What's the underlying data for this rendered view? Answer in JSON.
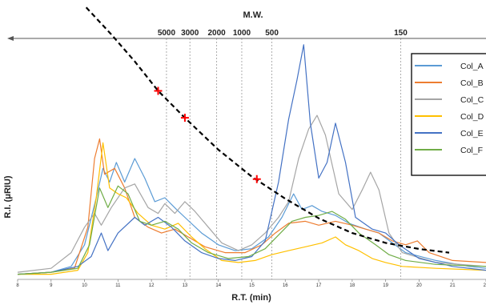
{
  "chart_data": {
    "type": "line",
    "title": "M.W.",
    "xlabel": "R.T. (min)",
    "ylabel": "R.I. (μRIU)",
    "xlim": [
      8,
      22
    ],
    "x_ticks": [
      8,
      9,
      10,
      11,
      12,
      13,
      14,
      15,
      16,
      17,
      18,
      19,
      20,
      21,
      22
    ],
    "y_ticks_shown": false,
    "grid": false,
    "legend_position": "top-right",
    "mw_markers": [
      {
        "label": "5000",
        "rt": 12.45
      },
      {
        "label": "3000",
        "rt": 13.15
      },
      {
        "label": "2000",
        "rt": 13.95
      },
      {
        "label": "1000",
        "rt": 14.7
      },
      {
        "label": "500",
        "rt": 15.6
      },
      {
        "label": "150",
        "rt": 19.45
      }
    ],
    "calibration_curve": {
      "style": "dashed",
      "color": "#000000",
      "points": [
        [
          10.05,
          100
        ],
        [
          10.8,
          89
        ],
        [
          11.5,
          78
        ],
        [
          12.2,
          66
        ],
        [
          13.0,
          55
        ],
        [
          14.0,
          42
        ],
        [
          15.0,
          31
        ],
        [
          16.0,
          22
        ],
        [
          17.0,
          14
        ],
        [
          18.0,
          8
        ],
        [
          19.0,
          4
        ],
        [
          20.0,
          1.5
        ],
        [
          20.9,
          0
        ]
      ],
      "standards": [
        [
          12.2,
          66
        ],
        [
          13.0,
          55
        ],
        [
          15.15,
          30
        ]
      ],
      "standard_marker_color": "#ff0000"
    },
    "series": [
      {
        "name": "Col_A",
        "color": "#5b9bd5",
        "points": [
          [
            8,
            1
          ],
          [
            9,
            2
          ],
          [
            9.6,
            5
          ],
          [
            10.0,
            16
          ],
          [
            10.35,
            40
          ],
          [
            10.55,
            55
          ],
          [
            10.75,
            48
          ],
          [
            10.95,
            58
          ],
          [
            11.2,
            48
          ],
          [
            11.5,
            60
          ],
          [
            11.8,
            50
          ],
          [
            12.1,
            38
          ],
          [
            12.4,
            40
          ],
          [
            12.75,
            34
          ],
          [
            13.0,
            30
          ],
          [
            13.5,
            22
          ],
          [
            14.0,
            16
          ],
          [
            14.5,
            13
          ],
          [
            15.0,
            14
          ],
          [
            15.5,
            20
          ],
          [
            15.9,
            30
          ],
          [
            16.25,
            42
          ],
          [
            16.5,
            34
          ],
          [
            16.8,
            36
          ],
          [
            17.1,
            33
          ],
          [
            17.5,
            31
          ],
          [
            17.9,
            27
          ],
          [
            18.4,
            24
          ],
          [
            18.8,
            22
          ],
          [
            19.2,
            17
          ],
          [
            19.6,
            12
          ],
          [
            20.5,
            8
          ],
          [
            21.5,
            5
          ],
          [
            22,
            4
          ]
        ]
      },
      {
        "name": "Col_B",
        "color": "#ed7d31",
        "points": [
          [
            8,
            1
          ],
          [
            9,
            2
          ],
          [
            9.7,
            4
          ],
          [
            10.1,
            25
          ],
          [
            10.3,
            60
          ],
          [
            10.45,
            70
          ],
          [
            10.6,
            52
          ],
          [
            10.9,
            55
          ],
          [
            11.2,
            45
          ],
          [
            11.5,
            30
          ],
          [
            11.9,
            25
          ],
          [
            12.3,
            22
          ],
          [
            12.7,
            24
          ],
          [
            13.1,
            20
          ],
          [
            13.6,
            15
          ],
          [
            14.2,
            12
          ],
          [
            14.8,
            12
          ],
          [
            15.3,
            16
          ],
          [
            15.7,
            22
          ],
          [
            16.1,
            27
          ],
          [
            16.6,
            28
          ],
          [
            17.0,
            26
          ],
          [
            17.5,
            28
          ],
          [
            18.0,
            26
          ],
          [
            18.4,
            24
          ],
          [
            18.8,
            22
          ],
          [
            19.2,
            18
          ],
          [
            19.6,
            16
          ],
          [
            19.95,
            18
          ],
          [
            20.3,
            12
          ],
          [
            21.0,
            8
          ],
          [
            22,
            7
          ]
        ]
      },
      {
        "name": "Col_C",
        "color": "#a5a5a5",
        "points": [
          [
            8,
            2
          ],
          [
            9,
            4
          ],
          [
            9.6,
            12
          ],
          [
            10.0,
            25
          ],
          [
            10.3,
            32
          ],
          [
            10.5,
            26
          ],
          [
            10.8,
            35
          ],
          [
            11.2,
            45
          ],
          [
            11.5,
            47
          ],
          [
            11.9,
            35
          ],
          [
            12.2,
            32
          ],
          [
            12.4,
            37
          ],
          [
            12.7,
            32
          ],
          [
            13.0,
            38
          ],
          [
            13.3,
            33
          ],
          [
            13.7,
            25
          ],
          [
            14.1,
            17
          ],
          [
            14.6,
            13
          ],
          [
            15.0,
            16
          ],
          [
            15.4,
            22
          ],
          [
            15.8,
            30
          ],
          [
            16.1,
            38
          ],
          [
            16.4,
            60
          ],
          [
            16.7,
            75
          ],
          [
            16.95,
            82
          ],
          [
            17.2,
            72
          ],
          [
            17.6,
            42
          ],
          [
            18.0,
            34
          ],
          [
            18.3,
            44
          ],
          [
            18.55,
            53
          ],
          [
            18.8,
            44
          ],
          [
            19.1,
            22
          ],
          [
            19.5,
            12
          ],
          [
            20.5,
            7
          ],
          [
            22,
            5
          ]
        ]
      },
      {
        "name": "Col_D",
        "color": "#ffc000",
        "points": [
          [
            8,
            1
          ],
          [
            9,
            1
          ],
          [
            9.8,
            3
          ],
          [
            10.1,
            12
          ],
          [
            10.35,
            40
          ],
          [
            10.55,
            68
          ],
          [
            10.75,
            45
          ],
          [
            11.0,
            42
          ],
          [
            11.25,
            40
          ],
          [
            11.6,
            32
          ],
          [
            12.0,
            26
          ],
          [
            12.4,
            24
          ],
          [
            12.8,
            27
          ],
          [
            13.2,
            20
          ],
          [
            13.6,
            14
          ],
          [
            14.1,
            8
          ],
          [
            14.6,
            7
          ],
          [
            15.1,
            8
          ],
          [
            15.6,
            11
          ],
          [
            16.1,
            13
          ],
          [
            16.6,
            15
          ],
          [
            17.1,
            17
          ],
          [
            17.5,
            20
          ],
          [
            17.8,
            16
          ],
          [
            18.2,
            13
          ],
          [
            18.6,
            9
          ],
          [
            19.0,
            7
          ],
          [
            19.5,
            5
          ],
          [
            20.5,
            4
          ],
          [
            22,
            3
          ]
        ]
      },
      {
        "name": "Col_E",
        "color": "#4472c4",
        "points": [
          [
            8,
            1
          ],
          [
            9,
            2
          ],
          [
            9.8,
            5
          ],
          [
            10.2,
            10
          ],
          [
            10.5,
            22
          ],
          [
            10.7,
            13
          ],
          [
            11.0,
            22
          ],
          [
            11.5,
            30
          ],
          [
            11.8,
            26
          ],
          [
            12.2,
            30
          ],
          [
            12.6,
            25
          ],
          [
            13.0,
            18
          ],
          [
            13.5,
            12
          ],
          [
            14.0,
            9
          ],
          [
            14.5,
            8
          ],
          [
            15.0,
            10
          ],
          [
            15.4,
            18
          ],
          [
            15.8,
            48
          ],
          [
            16.1,
            80
          ],
          [
            16.35,
            100
          ],
          [
            16.55,
            118
          ],
          [
            16.75,
            78
          ],
          [
            17.0,
            50
          ],
          [
            17.25,
            58
          ],
          [
            17.5,
            78
          ],
          [
            17.8,
            58
          ],
          [
            18.1,
            30
          ],
          [
            18.6,
            24
          ],
          [
            19.0,
            22
          ],
          [
            19.4,
            16
          ],
          [
            20.0,
            9
          ],
          [
            21.0,
            5
          ],
          [
            22,
            3
          ]
        ]
      },
      {
        "name": "Col_F",
        "color": "#70ad47",
        "points": [
          [
            8,
            1
          ],
          [
            9,
            2
          ],
          [
            9.8,
            4
          ],
          [
            10.15,
            16
          ],
          [
            10.45,
            45
          ],
          [
            10.7,
            35
          ],
          [
            11.0,
            46
          ],
          [
            11.3,
            42
          ],
          [
            11.65,
            28
          ],
          [
            12.0,
            26
          ],
          [
            12.4,
            28
          ],
          [
            12.8,
            24
          ],
          [
            13.2,
            17
          ],
          [
            13.7,
            12
          ],
          [
            14.3,
            9
          ],
          [
            14.9,
            10
          ],
          [
            15.4,
            14
          ],
          [
            15.8,
            21
          ],
          [
            16.2,
            28
          ],
          [
            16.6,
            30
          ],
          [
            17.0,
            31
          ],
          [
            17.4,
            33
          ],
          [
            17.8,
            29
          ],
          [
            18.2,
            22
          ],
          [
            18.7,
            16
          ],
          [
            19.1,
            11
          ],
          [
            19.6,
            8
          ],
          [
            20.5,
            6
          ],
          [
            22,
            5
          ]
        ]
      }
    ]
  }
}
